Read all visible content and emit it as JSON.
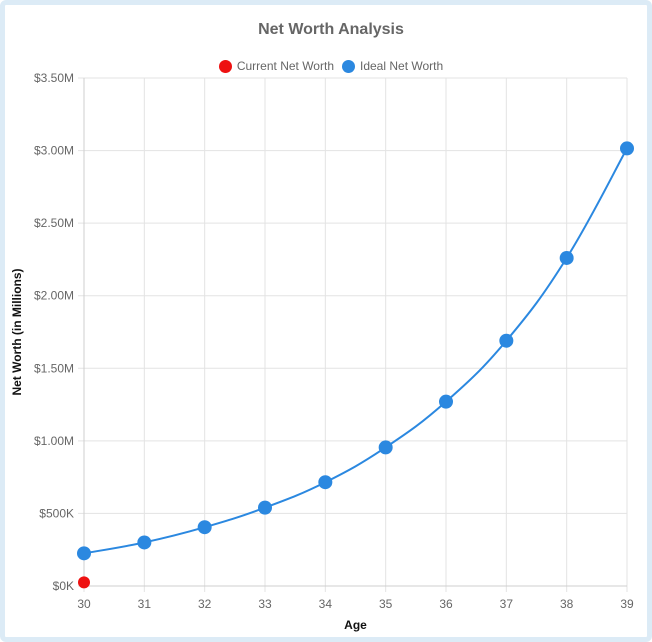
{
  "chart_data": {
    "type": "line",
    "title": "Net Worth Analysis",
    "xlabel": "Age",
    "ylabel": "Net Worth (in Millions)",
    "x": [
      30,
      31,
      32,
      33,
      34,
      35,
      36,
      37,
      38,
      39
    ],
    "x_tick_labels": [
      "30",
      "31",
      "32",
      "33",
      "34",
      "35",
      "36",
      "37",
      "38",
      "39"
    ],
    "ylim": [
      0,
      3500000
    ],
    "y_ticks": [
      0,
      500000,
      1000000,
      1500000,
      2000000,
      2500000,
      3000000,
      3500000
    ],
    "y_tick_labels": [
      "$0K",
      "$500K",
      "$1.00M",
      "$1.50M",
      "$2.00M",
      "$2.50M",
      "$3.00M",
      "$3.50M"
    ],
    "grid": true,
    "legend_position": "top-center",
    "series": [
      {
        "name": "Current Net Worth",
        "color": "#ee1111",
        "x": [
          30
        ],
        "values": [
          25000
        ]
      },
      {
        "name": "Ideal Net Worth",
        "color": "#2b88e0",
        "x": [
          30,
          31,
          32,
          33,
          34,
          35,
          36,
          37,
          38,
          39
        ],
        "values": [
          225000,
          300000,
          405000,
          540000,
          715000,
          955000,
          1270000,
          1690000,
          2260000,
          3015000
        ]
      }
    ]
  }
}
